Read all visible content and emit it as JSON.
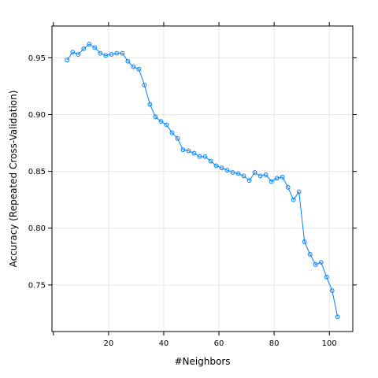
{
  "chart_data": {
    "type": "line",
    "title": "",
    "xlabel": "#Neighbors",
    "ylabel": "Accuracy (Repeated Cross-Validation)",
    "xlim": [
      -0.5,
      108.5
    ],
    "ylim": [
      0.709,
      0.978
    ],
    "xticks": [
      20,
      40,
      60,
      80,
      100
    ],
    "xtick_labels": [
      "20",
      "40",
      "60",
      "80",
      "100"
    ],
    "yticks": [
      0.75,
      0.8,
      0.85,
      0.9,
      0.95
    ],
    "ytick_labels": [
      "0.75",
      "0.80",
      "0.85",
      "0.90",
      "0.95"
    ],
    "grid": true,
    "marker": "circle",
    "colors": {
      "series": "#0080ff",
      "axis": "#000000",
      "grid": "#e6e6e6"
    },
    "series": [
      {
        "x": [
          5,
          7,
          9,
          11,
          13,
          15,
          17,
          19,
          21,
          23,
          25,
          27,
          29,
          31,
          33,
          35,
          37,
          39,
          41,
          43,
          45,
          47,
          49,
          51,
          53,
          55,
          57,
          59,
          61,
          63,
          65,
          67,
          69,
          71,
          73,
          75,
          77,
          79,
          81,
          83,
          85,
          87,
          89,
          91,
          93,
          95,
          97,
          99,
          101,
          103
        ],
        "y": [
          0.948,
          0.955,
          0.953,
          0.958,
          0.962,
          0.959,
          0.954,
          0.952,
          0.953,
          0.954,
          0.954,
          0.947,
          0.942,
          0.94,
          0.926,
          0.909,
          0.898,
          0.894,
          0.891,
          0.884,
          0.879,
          0.869,
          0.868,
          0.866,
          0.863,
          0.863,
          0.859,
          0.855,
          0.853,
          0.851,
          0.849,
          0.848,
          0.846,
          0.842,
          0.849,
          0.846,
          0.847,
          0.841,
          0.844,
          0.845,
          0.836,
          0.825,
          0.832,
          0.788,
          0.777,
          0.768,
          0.77,
          0.757,
          0.745,
          0.722
        ]
      }
    ]
  }
}
